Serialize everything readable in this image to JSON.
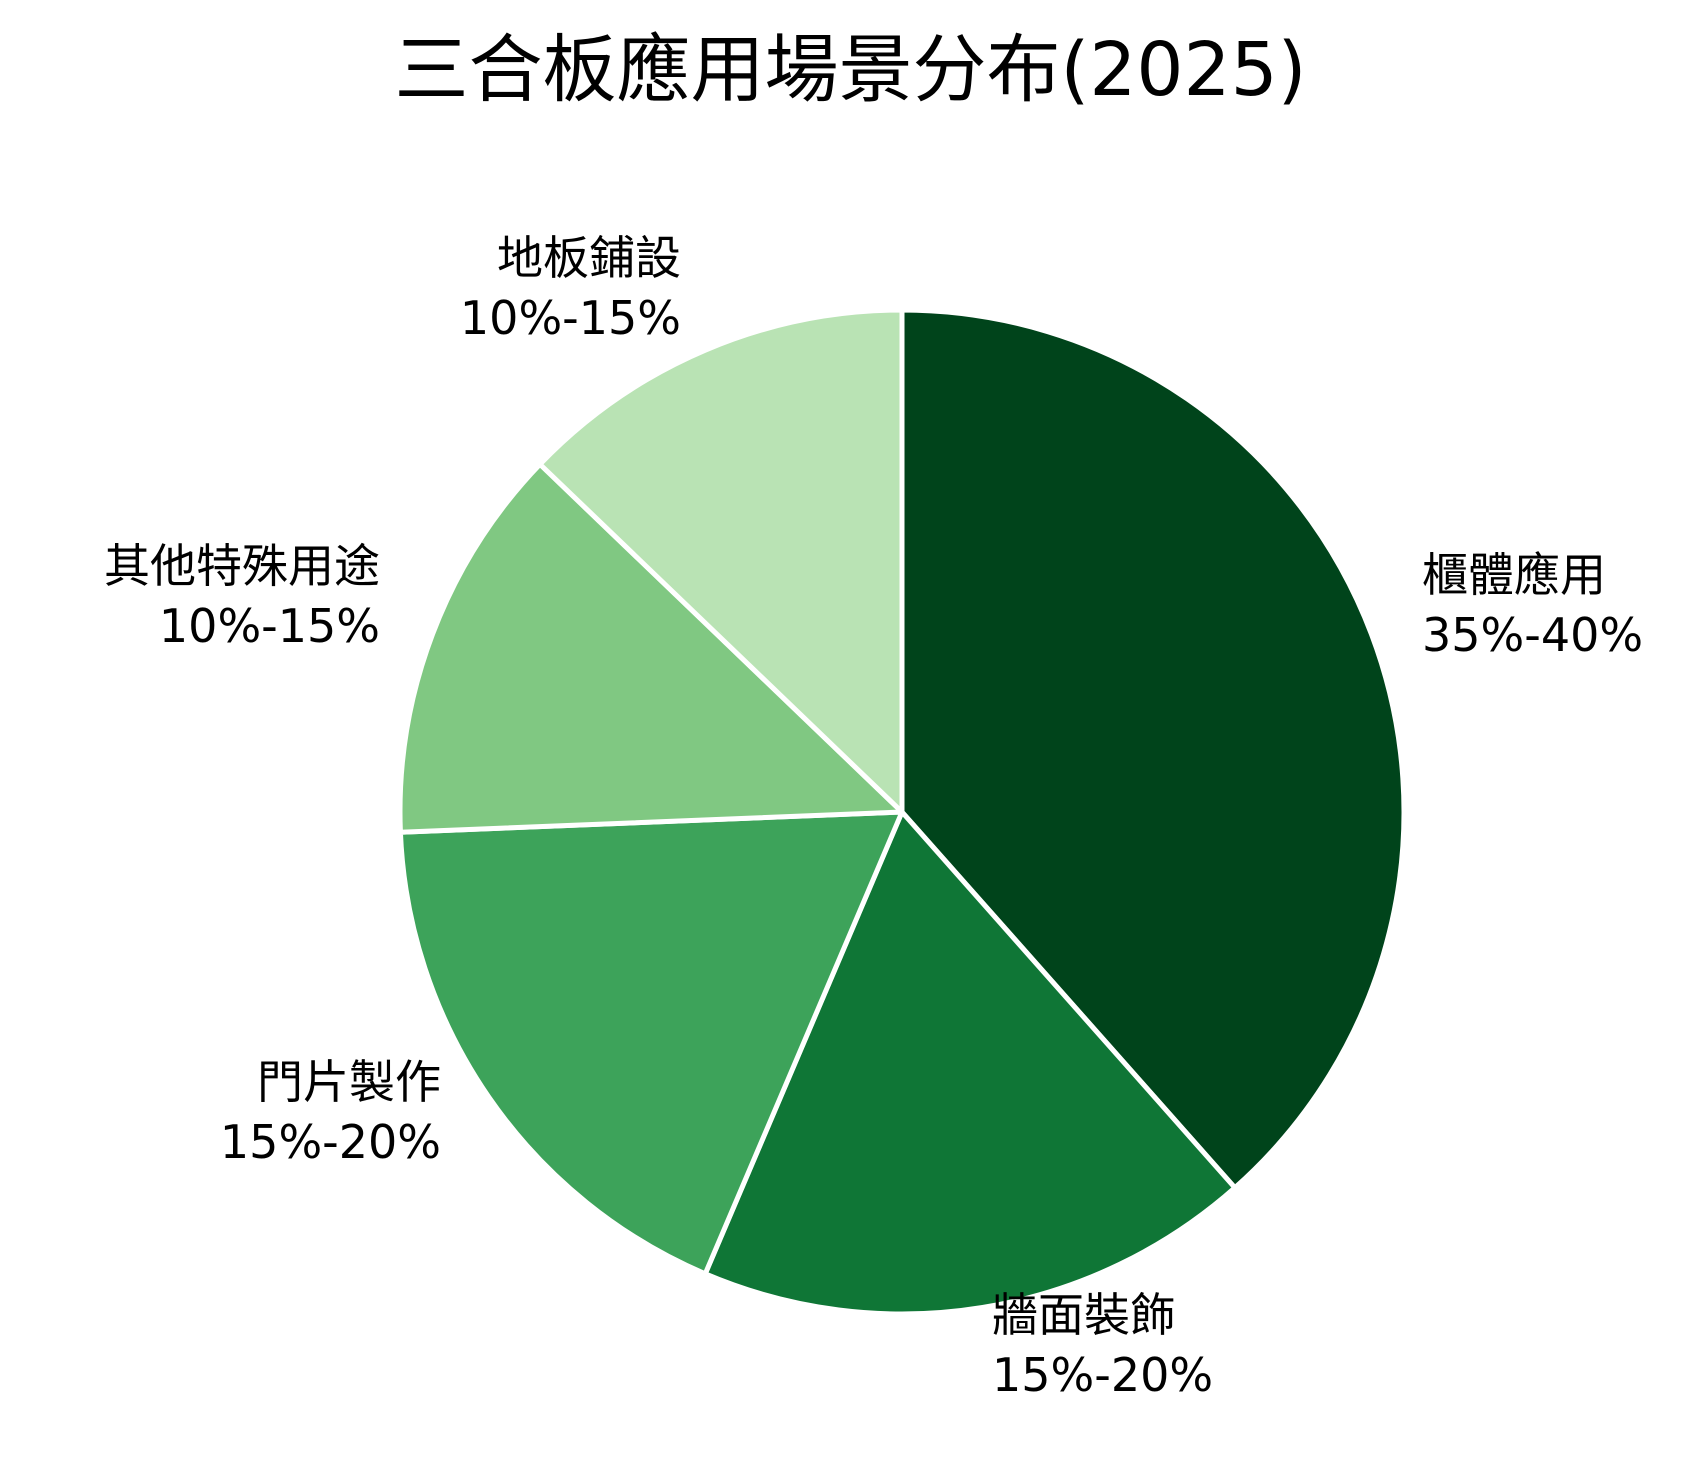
{
  "chart_data": {
    "type": "pie",
    "title": "三合板應用場景分布(2025)",
    "slices": [
      {
        "label": "櫃體應用",
        "range": "35%-40%",
        "value": 37.5,
        "color": "#00441b"
      },
      {
        "label": "牆面裝飾",
        "range": "15%-20%",
        "value": 17.5,
        "color": "#0f7636"
      },
      {
        "label": "門片製作",
        "range": "15%-20%",
        "value": 17.5,
        "color": "#3da35a"
      },
      {
        "label": "其他特殊用途",
        "range": "10%-15%",
        "value": 12.5,
        "color": "#80c882"
      },
      {
        "label": "地板鋪設",
        "range": "10%-15%",
        "value": 12.5,
        "color": "#b9e3b4"
      }
    ],
    "start_angle": "12 o'clock",
    "direction": "clockwise",
    "legend": "none"
  }
}
